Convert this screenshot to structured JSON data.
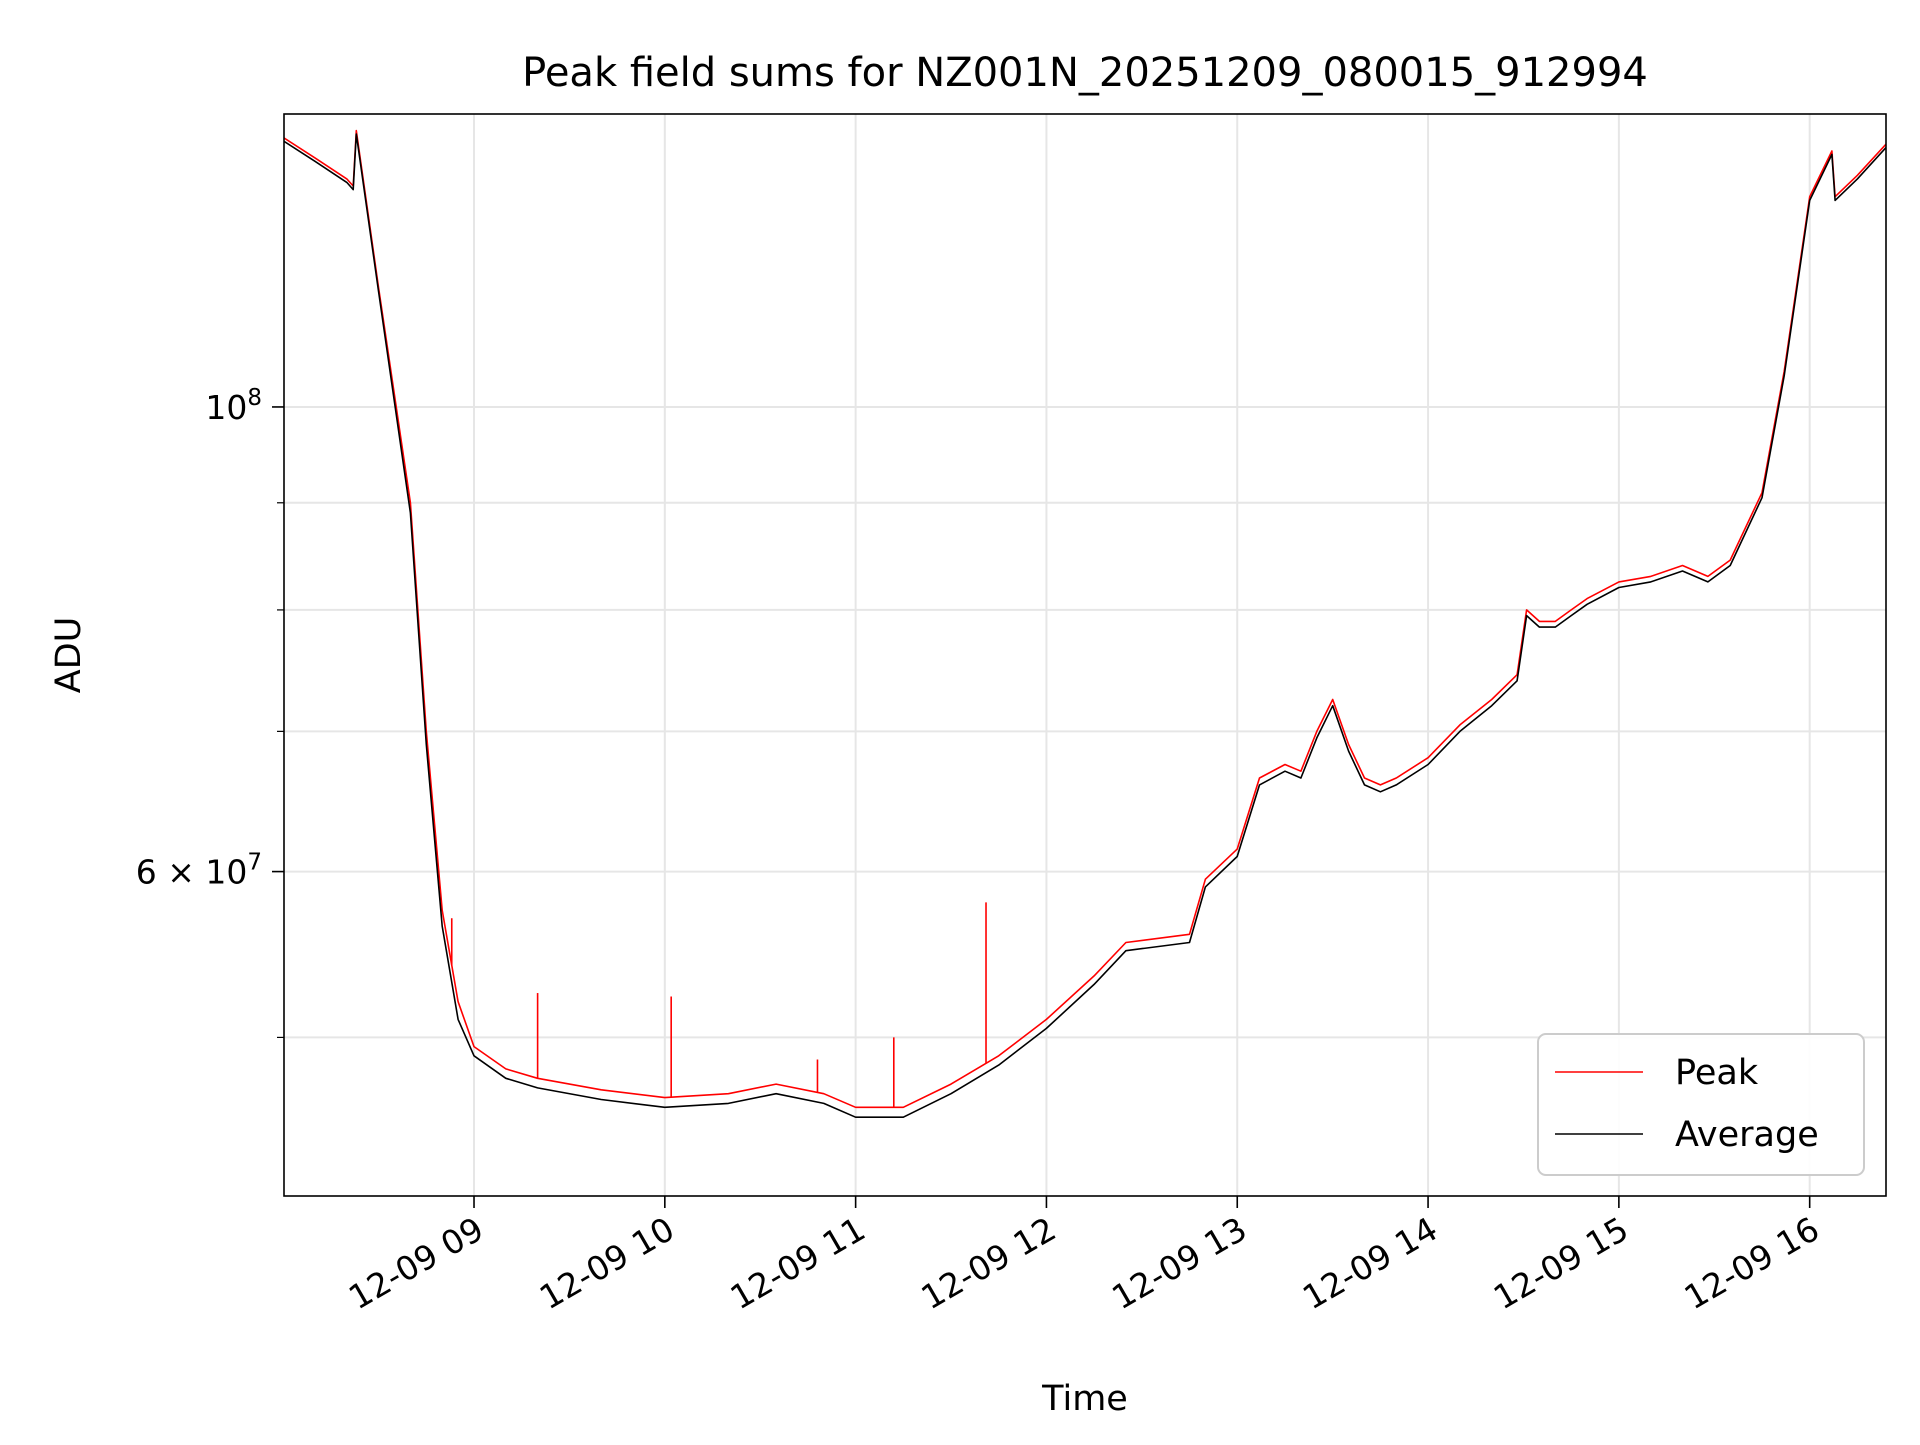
{
  "chart_data": {
    "type": "line",
    "title": "Peak field sums for NZ001N_20251209_080015_912994",
    "xlabel": "Time",
    "ylabel": "ADU",
    "yscale": "log",
    "grid": true,
    "legend_placement": "bottom-right",
    "xlim": [
      "2025-12-09 08:00:15",
      "2025-12-09 16:24:00"
    ],
    "ylim": [
      42000000,
      138000000
    ],
    "x_ticks": [
      {
        "value": "2025-12-09 09:00",
        "label": "12-09 09"
      },
      {
        "value": "2025-12-09 10:00",
        "label": "12-09 10"
      },
      {
        "value": "2025-12-09 11:00",
        "label": "12-09 11"
      },
      {
        "value": "2025-12-09 12:00",
        "label": "12-09 12"
      },
      {
        "value": "2025-12-09 13:00",
        "label": "12-09 13"
      },
      {
        "value": "2025-12-09 14:00",
        "label": "12-09 14"
      },
      {
        "value": "2025-12-09 15:00",
        "label": "12-09 15"
      },
      {
        "value": "2025-12-09 16:00",
        "label": "12-09 16"
      }
    ],
    "y_major_ticks": [
      {
        "value": 100000000,
        "base": "10",
        "exp": "8"
      },
      {
        "value": 60000000,
        "mantissa": "6 × 10",
        "exp": "7"
      }
    ],
    "y_minor_grid": [
      50000000,
      70000000,
      80000000,
      90000000
    ],
    "x_times": [
      "2025-12-09 08:00",
      "2025-12-09 08:10",
      "2025-12-09 08:20",
      "2025-12-09 08:22",
      "2025-12-09 08:23",
      "2025-12-09 08:30",
      "2025-12-09 08:40",
      "2025-12-09 08:45",
      "2025-12-09 08:50",
      "2025-12-09 08:55",
      "2025-12-09 09:00",
      "2025-12-09 09:10",
      "2025-12-09 09:20",
      "2025-12-09 09:40",
      "2025-12-09 10:00",
      "2025-12-09 10:20",
      "2025-12-09 10:35",
      "2025-12-09 10:50",
      "2025-12-09 11:00",
      "2025-12-09 11:15",
      "2025-12-09 11:30",
      "2025-12-09 11:45",
      "2025-12-09 12:00",
      "2025-12-09 12:15",
      "2025-12-09 12:25",
      "2025-12-09 12:45",
      "2025-12-09 12:50",
      "2025-12-09 13:00",
      "2025-12-09 13:07",
      "2025-12-09 13:15",
      "2025-12-09 13:20",
      "2025-12-09 13:25",
      "2025-12-09 13:30",
      "2025-12-09 13:35",
      "2025-12-09 13:40",
      "2025-12-09 13:45",
      "2025-12-09 13:50",
      "2025-12-09 14:00",
      "2025-12-09 14:10",
      "2025-12-09 14:20",
      "2025-12-09 14:28",
      "2025-12-09 14:31",
      "2025-12-09 14:35",
      "2025-12-09 14:40",
      "2025-12-09 14:45",
      "2025-12-09 14:50",
      "2025-12-09 15:00",
      "2025-12-09 15:10",
      "2025-12-09 15:20",
      "2025-12-09 15:28",
      "2025-12-09 15:35",
      "2025-12-09 15:45",
      "2025-12-09 15:52",
      "2025-12-09 16:00",
      "2025-12-09 16:07",
      "2025-12-09 16:08",
      "2025-12-09 16:15",
      "2025-12-09 16:24"
    ],
    "series": [
      {
        "name": "Peak",
        "color": "#ff0000",
        "values": [
          134500000,
          131500000,
          128500000,
          127500000,
          135500000,
          114000000,
          90000000,
          70000000,
          57500000,
          52000000,
          49500000,
          48300000,
          47800000,
          47200000,
          46800000,
          47000000,
          47500000,
          47000000,
          46300000,
          46300000,
          47500000,
          49000000,
          51000000,
          53500000,
          55500000,
          56000000,
          59500000,
          61500000,
          66500000,
          67500000,
          67000000,
          70000000,
          72500000,
          69000000,
          66500000,
          66000000,
          66500000,
          68000000,
          70500000,
          72500000,
          74500000,
          80000000,
          79000000,
          79000000,
          80000000,
          81000000,
          82500000,
          83000000,
          84000000,
          83000000,
          84500000,
          91000000,
          104000000,
          126000000,
          132500000,
          126000000,
          129000000,
          133500000
        ]
      },
      {
        "name": "Average",
        "color": "#000000",
        "values": [
          134000000,
          131000000,
          128000000,
          127000000,
          135000000,
          113500000,
          89000000,
          69000000,
          56500000,
          51000000,
          49000000,
          47800000,
          47300000,
          46700000,
          46300000,
          46500000,
          47000000,
          46500000,
          45800000,
          45800000,
          47000000,
          48500000,
          50500000,
          53000000,
          55000000,
          55500000,
          59000000,
          61000000,
          66000000,
          67000000,
          66500000,
          69500000,
          72000000,
          68500000,
          66000000,
          65500000,
          66000000,
          67500000,
          70000000,
          72000000,
          74000000,
          79500000,
          78500000,
          78500000,
          79500000,
          80500000,
          82000000,
          82500000,
          83500000,
          82500000,
          84000000,
          90500000,
          103500000,
          125500000,
          132000000,
          125500000,
          128500000,
          133000000
        ]
      }
    ],
    "annotations": [
      {
        "series": "Peak",
        "x": "2025-12-09 08:53",
        "y": 57000000
      },
      {
        "series": "Peak",
        "x": "2025-12-09 09:20",
        "y": 52500000
      },
      {
        "series": "Peak",
        "x": "2025-12-09 10:02",
        "y": 52300000
      },
      {
        "series": "Peak",
        "x": "2025-12-09 10:48",
        "y": 48800000
      },
      {
        "series": "Peak",
        "x": "2025-12-09 11:12",
        "y": 50000000
      },
      {
        "series": "Peak",
        "x": "2025-12-09 11:41",
        "y": 58000000
      }
    ]
  }
}
